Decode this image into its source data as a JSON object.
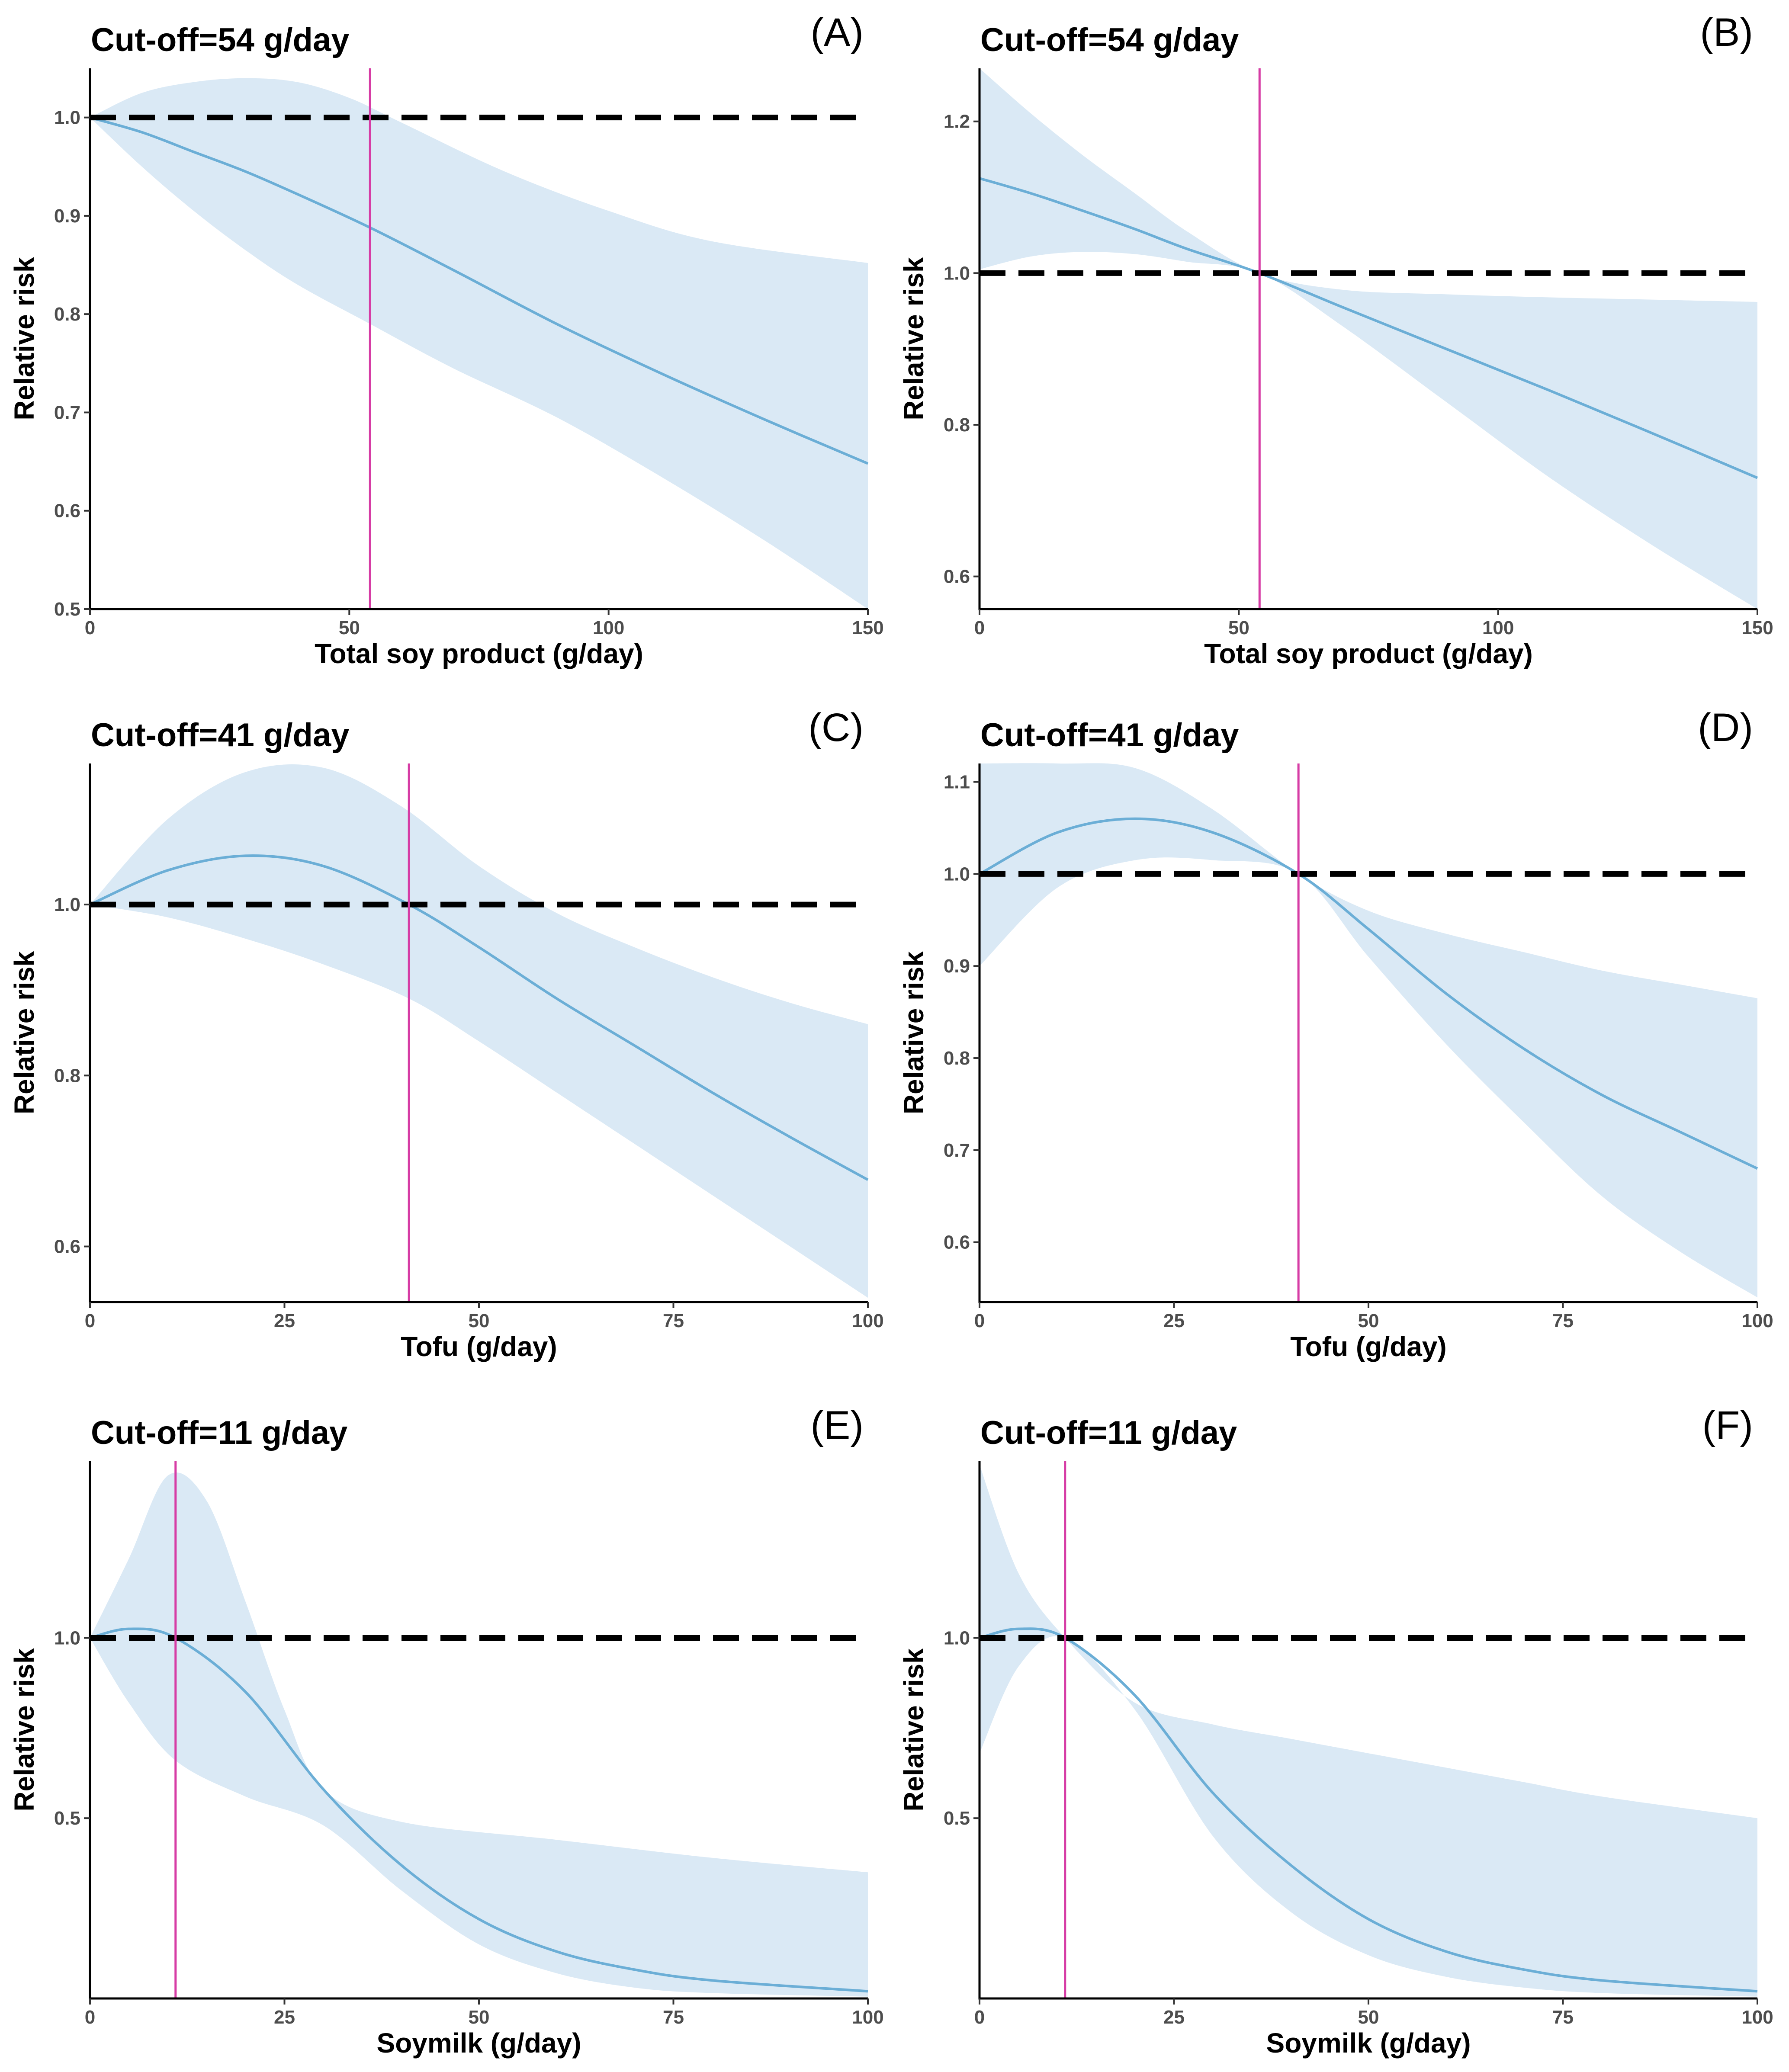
{
  "chart_data": [
    {
      "id": "A",
      "panel_label": "(A)",
      "type": "line",
      "title": "Cut-off=54 g/day",
      "xlabel": "Total soy product (g/day)",
      "ylabel": "Relative risk",
      "xlim": [
        0,
        150
      ],
      "ylim": [
        0.5,
        1.05
      ],
      "xticks": [
        0,
        50,
        100,
        150
      ],
      "yticks": [
        0.5,
        0.6,
        0.7,
        0.8,
        0.9,
        1.0
      ],
      "ytick_labels": [
        "0.5",
        "0.6",
        "0.7",
        "0.8",
        "0.9",
        "1.0"
      ],
      "reference_line": 1.0,
      "cutoff": 54,
      "series": [
        {
          "name": "Relative risk",
          "x": [
            0,
            10,
            20,
            30,
            40,
            54,
            70,
            90,
            110,
            130,
            150
          ],
          "values": [
            1.0,
            0.985,
            0.965,
            0.945,
            0.922,
            0.888,
            0.845,
            0.79,
            0.74,
            0.693,
            0.648
          ]
        },
        {
          "name": "Upper 95% CI",
          "x": [
            0,
            10,
            20,
            30,
            40,
            50,
            60,
            80,
            100,
            120,
            150
          ],
          "values": [
            1.0,
            1.025,
            1.036,
            1.04,
            1.036,
            1.02,
            0.995,
            0.945,
            0.905,
            0.874,
            0.852
          ]
        },
        {
          "name": "Lower 95% CI",
          "x": [
            0,
            10,
            20,
            30,
            40,
            54,
            70,
            90,
            110,
            130,
            150
          ],
          "values": [
            1.0,
            0.95,
            0.905,
            0.865,
            0.83,
            0.79,
            0.745,
            0.695,
            0.635,
            0.57,
            0.5
          ]
        }
      ]
    },
    {
      "id": "B",
      "panel_label": "(B)",
      "type": "line",
      "title": "Cut-off=54 g/day",
      "xlabel": "Total soy product (g/day)",
      "ylabel": "Relative risk",
      "xlim": [
        0,
        150
      ],
      "ylim": [
        0.557,
        1.27
      ],
      "xticks": [
        0,
        50,
        100,
        150
      ],
      "yticks": [
        0.6,
        0.8,
        1.0,
        1.2
      ],
      "ytick_labels": [
        "0.6",
        "0.8",
        "1.0",
        "1.2"
      ],
      "reference_line": 1.0,
      "cutoff": 54,
      "series": [
        {
          "name": "Relative risk",
          "x": [
            0,
            10,
            20,
            30,
            40,
            54,
            70,
            90,
            110,
            130,
            150
          ],
          "values": [
            1.125,
            1.105,
            1.082,
            1.058,
            1.032,
            1.0,
            0.955,
            0.9,
            0.845,
            0.788,
            0.73
          ]
        },
        {
          "name": "Upper 95% CI",
          "x": [
            0,
            10,
            20,
            30,
            40,
            54,
            70,
            90,
            110,
            130,
            150
          ],
          "values": [
            1.27,
            1.21,
            1.155,
            1.105,
            1.055,
            1.0,
            0.978,
            0.972,
            0.968,
            0.965,
            0.962
          ]
        },
        {
          "name": "Lower 95% CI",
          "x": [
            0,
            10,
            20,
            30,
            40,
            54,
            70,
            90,
            110,
            130,
            150
          ],
          "values": [
            1.005,
            1.022,
            1.028,
            1.025,
            1.015,
            1.0,
            0.93,
            0.83,
            0.73,
            0.64,
            0.557
          ]
        }
      ]
    },
    {
      "id": "C",
      "panel_label": "(C)",
      "type": "line",
      "title": "Cut-off=41 g/day",
      "xlabel": "Tofu (g/day)",
      "ylabel": "Relative risk",
      "xlim": [
        0,
        100
      ],
      "ylim": [
        0.535,
        1.165
      ],
      "xticks": [
        0,
        25,
        50,
        75,
        100
      ],
      "yticks": [
        0.6,
        0.8,
        1.0
      ],
      "ytick_labels": [
        "0.6",
        "0.8",
        "1.0"
      ],
      "reference_line": 1.0,
      "cutoff": 41,
      "series": [
        {
          "name": "Relative risk",
          "x": [
            0,
            10,
            20,
            30,
            41,
            50,
            60,
            70,
            80,
            90,
            100
          ],
          "values": [
            1.0,
            1.04,
            1.057,
            1.045,
            1.0,
            0.95,
            0.89,
            0.835,
            0.78,
            0.728,
            0.678
          ]
        },
        {
          "name": "Upper 95% CI",
          "x": [
            0,
            10,
            20,
            30,
            40,
            50,
            60,
            70,
            80,
            90,
            100
          ],
          "values": [
            1.0,
            1.1,
            1.155,
            1.16,
            1.115,
            1.045,
            0.99,
            0.95,
            0.915,
            0.885,
            0.86
          ]
        },
        {
          "name": "Lower 95% CI",
          "x": [
            0,
            10,
            20,
            30,
            41,
            50,
            60,
            70,
            80,
            90,
            100
          ],
          "values": [
            1.0,
            0.985,
            0.96,
            0.93,
            0.89,
            0.84,
            0.78,
            0.72,
            0.66,
            0.6,
            0.54
          ]
        }
      ]
    },
    {
      "id": "D",
      "panel_label": "(D)",
      "type": "line",
      "title": "Cut-off=41 g/day",
      "xlabel": "Tofu (g/day)",
      "ylabel": "Relative risk",
      "xlim": [
        0,
        100
      ],
      "ylim": [
        0.535,
        1.12
      ],
      "xticks": [
        0,
        25,
        50,
        75,
        100
      ],
      "yticks": [
        0.6,
        0.7,
        0.8,
        0.9,
        1.0,
        1.1
      ],
      "ytick_labels": [
        "0.6",
        "0.7",
        "0.8",
        "0.9",
        "1.0",
        "1.1"
      ],
      "reference_line": 1.0,
      "cutoff": 41,
      "series": [
        {
          "name": "Relative risk",
          "x": [
            0,
            10,
            20,
            30,
            41,
            50,
            60,
            70,
            80,
            90,
            100
          ],
          "values": [
            1.0,
            1.045,
            1.06,
            1.045,
            1.0,
            0.94,
            0.87,
            0.81,
            0.76,
            0.72,
            0.68
          ]
        },
        {
          "name": "Upper 95% CI",
          "x": [
            0,
            10,
            20,
            30,
            41,
            50,
            60,
            70,
            80,
            90,
            100
          ],
          "values": [
            1.12,
            1.12,
            1.115,
            1.07,
            1.0,
            0.96,
            0.935,
            0.915,
            0.895,
            0.88,
            0.865
          ]
        },
        {
          "name": "Lower 95% CI",
          "x": [
            0,
            10,
            20,
            30,
            41,
            50,
            60,
            70,
            80,
            90,
            100
          ],
          "values": [
            0.9,
            0.985,
            1.015,
            1.015,
            1.0,
            0.91,
            0.815,
            0.73,
            0.65,
            0.59,
            0.54
          ]
        }
      ]
    },
    {
      "id": "E",
      "panel_label": "(E)",
      "type": "line",
      "title": "Cut-off=11 g/day",
      "xlabel": "Soymilk (g/day)",
      "ylabel": "Relative risk",
      "xlim": [
        0,
        100
      ],
      "ylim": [
        0.0,
        1.49
      ],
      "xticks": [
        0,
        25,
        50,
        75,
        100
      ],
      "yticks": [
        0.5,
        1.0
      ],
      "ytick_labels": [
        "0.5",
        "1.0"
      ],
      "reference_line": 1.0,
      "cutoff": 11,
      "series": [
        {
          "name": "Relative risk",
          "x": [
            0,
            5,
            11,
            20,
            30,
            40,
            50,
            60,
            70,
            80,
            100
          ],
          "values": [
            1.0,
            1.025,
            1.0,
            0.85,
            0.58,
            0.37,
            0.22,
            0.13,
            0.08,
            0.05,
            0.02
          ]
        },
        {
          "name": "Upper 95% CI",
          "x": [
            0,
            5,
            10,
            15,
            20,
            25,
            30,
            40,
            60,
            80,
            100
          ],
          "values": [
            1.0,
            1.22,
            1.45,
            1.38,
            1.1,
            0.8,
            0.58,
            0.49,
            0.44,
            0.39,
            0.35
          ]
        },
        {
          "name": "Lower 95% CI",
          "x": [
            0,
            5,
            11,
            20,
            30,
            40,
            50,
            60,
            70,
            80,
            100
          ],
          "values": [
            1.0,
            0.82,
            0.66,
            0.56,
            0.48,
            0.3,
            0.15,
            0.07,
            0.03,
            0.015,
            0.005
          ]
        }
      ]
    },
    {
      "id": "F",
      "panel_label": "(F)",
      "type": "line",
      "title": "Cut-off=11 g/day",
      "xlabel": "Soymilk (g/day)",
      "ylabel": "Relative risk",
      "xlim": [
        0,
        100
      ],
      "ylim": [
        0.0,
        1.49
      ],
      "xticks": [
        0,
        25,
        50,
        75,
        100
      ],
      "yticks": [
        0.5,
        1.0
      ],
      "ytick_labels": [
        "0.5",
        "1.0"
      ],
      "reference_line": 1.0,
      "cutoff": 11,
      "series": [
        {
          "name": "Relative risk",
          "x": [
            0,
            5,
            11,
            20,
            30,
            40,
            50,
            60,
            70,
            80,
            100
          ],
          "values": [
            1.0,
            1.025,
            1.0,
            0.84,
            0.57,
            0.37,
            0.22,
            0.13,
            0.08,
            0.05,
            0.02
          ]
        },
        {
          "name": "Upper 95% CI",
          "x": [
            0,
            5,
            11,
            20,
            30,
            40,
            50,
            60,
            70,
            80,
            100
          ],
          "values": [
            1.48,
            1.18,
            1.0,
            0.82,
            0.76,
            0.72,
            0.68,
            0.64,
            0.6,
            0.56,
            0.5
          ]
        },
        {
          "name": "Lower 95% CI",
          "x": [
            0,
            5,
            11,
            20,
            30,
            40,
            50,
            60,
            70,
            80,
            100
          ],
          "values": [
            0.68,
            0.92,
            1.0,
            0.8,
            0.45,
            0.24,
            0.12,
            0.06,
            0.03,
            0.015,
            0.005
          ]
        }
      ]
    }
  ]
}
